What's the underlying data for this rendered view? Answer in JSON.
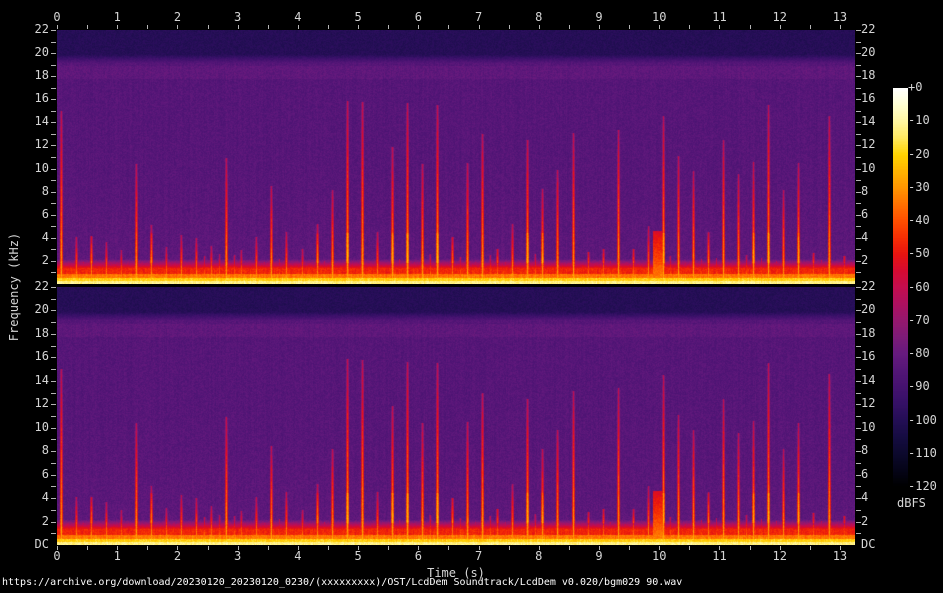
{
  "figure": {
    "freq_axis_label": "Frequency (kHz)",
    "time_axis_label": "Time (s)",
    "colorbar_unit": "dBFS",
    "footer_url": "https://archive.org/download/20230120_20230120_0230/(xxxxxxxxx)/OST/LcdDem Soundtrack/LcdDem v0.020/bgm029 90.wav",
    "time_ticks": [
      "0",
      "1",
      "2",
      "3",
      "4",
      "5",
      "6",
      "7",
      "8",
      "9",
      "10",
      "11",
      "12",
      "13"
    ],
    "freq_ticks_panel1": [
      "22",
      "20",
      "18",
      "16",
      "14",
      "12",
      "10",
      "8",
      "6",
      "4",
      "2"
    ],
    "freq_ticks_panel2": [
      "22",
      "20",
      "18",
      "16",
      "14",
      "12",
      "10",
      "8",
      "6",
      "4",
      "2",
      "DC"
    ],
    "colorbar_tick_labels": [
      "+0",
      "-10",
      "-20",
      "-30",
      "-40",
      "-50",
      "-60",
      "-70",
      "-80",
      "-90",
      "-100",
      "-110",
      "-120"
    ]
  },
  "chart_data": {
    "type": "heatmap",
    "subtype": "audio-spectrogram",
    "channels": 2,
    "x": {
      "label": "Time (s)",
      "min": 0,
      "max": 13.25,
      "tick_step": 1,
      "minor_tick_step": 0.5
    },
    "y": {
      "label": "Frequency (kHz)",
      "min": 0,
      "max": 22,
      "tick_step": 2,
      "minor_tick_step": 1,
      "zero_label": "DC"
    },
    "z": {
      "label": "dBFS",
      "min": -120,
      "max": 0,
      "tick_step": 10
    },
    "legend_position": "right-colorbar",
    "grid": false,
    "seed": 1337,
    "palette": [
      {
        "db": 0,
        "color": "#ffffff"
      },
      {
        "db": -5,
        "color": "#ffffd2"
      },
      {
        "db": -10,
        "color": "#fff6a0"
      },
      {
        "db": -15,
        "color": "#ffe85e"
      },
      {
        "db": -20,
        "color": "#ffd400"
      },
      {
        "db": -25,
        "color": "#ffb300"
      },
      {
        "db": -30,
        "color": "#ff9500"
      },
      {
        "db": -35,
        "color": "#ff7000"
      },
      {
        "db": -40,
        "color": "#ff4e00"
      },
      {
        "db": -45,
        "color": "#f62e04"
      },
      {
        "db": -50,
        "color": "#e71410"
      },
      {
        "db": -55,
        "color": "#d50a31"
      },
      {
        "db": -60,
        "color": "#c30d4f"
      },
      {
        "db": -65,
        "color": "#ae1060"
      },
      {
        "db": -70,
        "color": "#95186e"
      },
      {
        "db": -75,
        "color": "#7d1b78"
      },
      {
        "db": -80,
        "color": "#661a7e"
      },
      {
        "db": -85,
        "color": "#541677"
      },
      {
        "db": -90,
        "color": "#451270"
      },
      {
        "db": -95,
        "color": "#351066"
      },
      {
        "db": -100,
        "color": "#240e55"
      },
      {
        "db": -105,
        "color": "#160c42"
      },
      {
        "db": -110,
        "color": "#0c092e"
      },
      {
        "db": -115,
        "color": "#050418"
      },
      {
        "db": -120,
        "color": "#000000"
      }
    ],
    "content": {
      "noise_floor_db": -88,
      "noise_grain_db": 6.5,
      "lowpass_khz": 19.2,
      "above_cutoff_db": -102,
      "presence_band_khz": [
        17.8,
        18.9
      ],
      "dc_bands": [
        {
          "max_khz": 0.22,
          "db": -15
        },
        {
          "max_khz": 0.45,
          "db": -24
        },
        {
          "max_khz": 0.8,
          "db": -38
        },
        {
          "max_khz": 1.3,
          "db": -50
        }
      ],
      "low_fade_top_khz": 2.2,
      "onsets": {
        "grid_s": 0.125,
        "first_s": 0.06,
        "short_peak_khz": [
          0.9,
          2.3
        ],
        "main_peak_khz": [
          2.0,
          5.2
        ],
        "accent_peak_khz": [
          7.0,
          16.5
        ],
        "spike_base_db": -30,
        "spike_top_db": -64
      },
      "sections": [
        {
          "start": 0,
          "end": 4.2,
          "style": "intro",
          "accent_prob": 0.3,
          "blob_prob": 0.1
        },
        {
          "start": 4.2,
          "end": 9.9,
          "style": "busy",
          "accent_prob": 0.5,
          "blob_prob": 0.55
        },
        {
          "start": 10.05,
          "end": 13.25,
          "style": "busy",
          "accent_prob": 0.5,
          "blob_prob": 0.55
        }
      ],
      "accent_cluster_times_s": [
        4.9,
        9.98
      ],
      "bursts": [
        {
          "t": 9.97,
          "half_width_s": 0.09,
          "top_khz": 4.6,
          "peak_db": -34
        }
      ]
    }
  }
}
